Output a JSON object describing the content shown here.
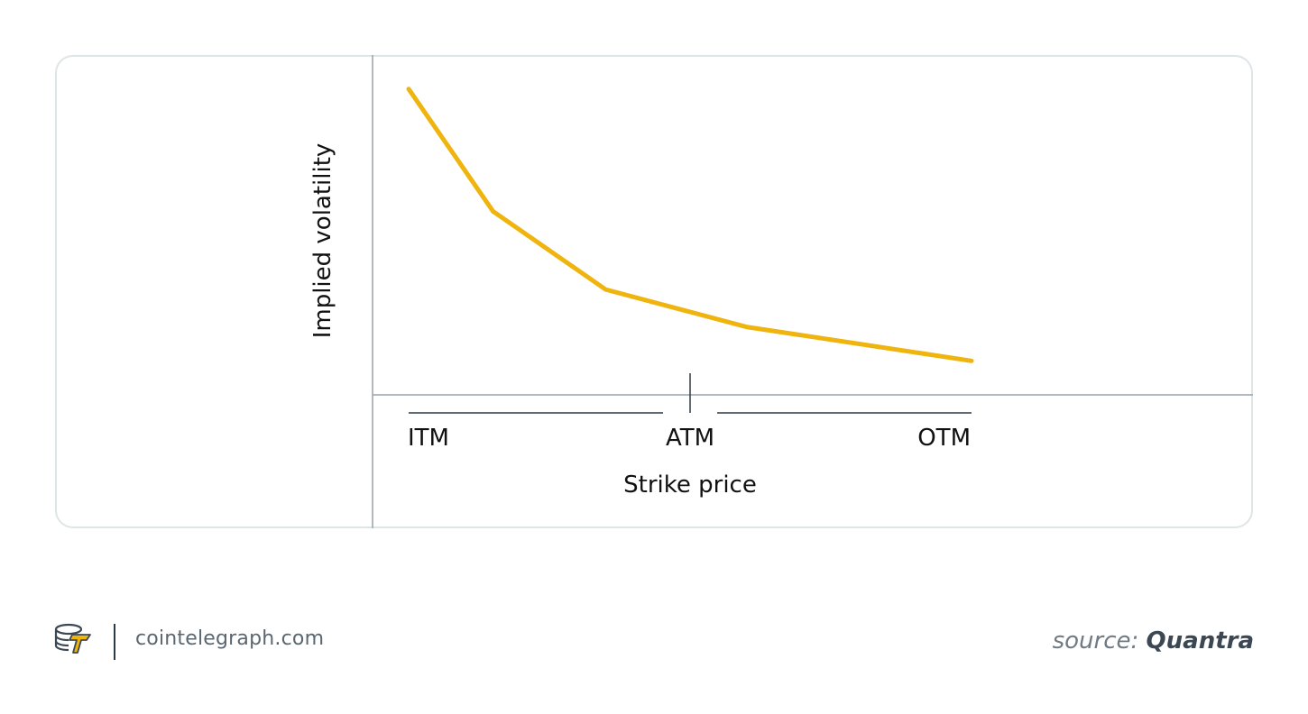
{
  "chart_data": {
    "type": "line",
    "title": "",
    "ylabel": "Implied volatility",
    "xlabel": "Strike price",
    "categories": [
      "ITM",
      "ATM",
      "OTM"
    ],
    "x": [
      0,
      0.15,
      0.35,
      0.6,
      1.0
    ],
    "series": [
      {
        "values": [
          0.9,
          0.54,
          0.31,
          0.2,
          0.1
        ]
      }
    ],
    "xlim": [
      0,
      1
    ],
    "ylim": [
      0,
      1
    ],
    "grid": false,
    "line_color": "#f0b40f",
    "axis_color": "#9aa3aa"
  },
  "footer": {
    "site": "cointelegraph.com",
    "source_prefix": "source:",
    "source_name": "Quantra",
    "logo_icon": "cointelegraph-logo-icon"
  }
}
